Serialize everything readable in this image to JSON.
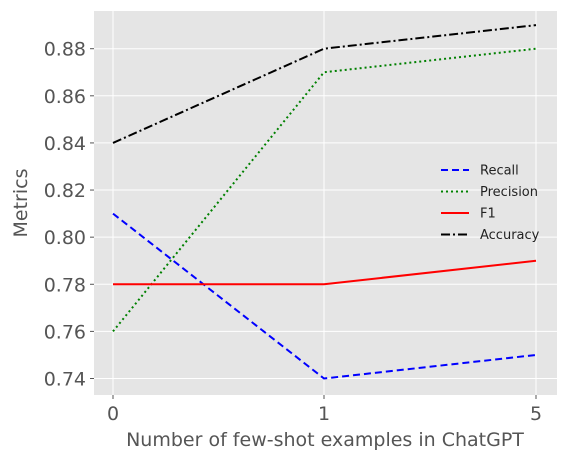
{
  "chart_data": {
    "type": "line",
    "categories": [
      "0",
      "1",
      "5"
    ],
    "xlabel": "Number of few-shot examples in ChatGPT",
    "ylabel": "Metrics",
    "ylim": [
      0.733,
      0.896
    ],
    "yticks": [
      0.74,
      0.76,
      0.78,
      0.8,
      0.82,
      0.84,
      0.86,
      0.88
    ],
    "ytick_labels": [
      "0.74",
      "0.76",
      "0.78",
      "0.80",
      "0.82",
      "0.84",
      "0.86",
      "0.88"
    ],
    "grid": true,
    "legend_position": "center-right",
    "background": "#e5e5e5",
    "series": [
      {
        "name": "Recall",
        "values": [
          0.81,
          0.74,
          0.75
        ],
        "color": "#0000ff",
        "style": "dashed"
      },
      {
        "name": "Precision",
        "values": [
          0.76,
          0.87,
          0.88
        ],
        "color": "#008000",
        "style": "dotted"
      },
      {
        "name": "F1",
        "values": [
          0.78,
          0.78,
          0.79
        ],
        "color": "#ff0000",
        "style": "solid"
      },
      {
        "name": "Accuracy",
        "values": [
          0.84,
          0.88,
          0.89
        ],
        "color": "#000000",
        "style": "dashdot"
      }
    ]
  }
}
